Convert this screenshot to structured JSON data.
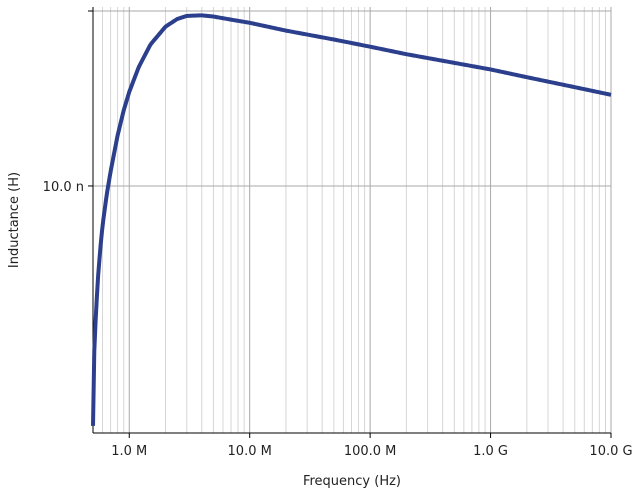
{
  "chart_data": {
    "type": "line",
    "title": "",
    "xlabel": "Frequency (Hz)",
    "ylabel": "Inductance (H)",
    "x_scale": "log",
    "y_scale": "log",
    "xlim": [
      500000,
      10000000000
    ],
    "ylim": [
      2.3e-09,
      2.9e-08
    ],
    "grid": true,
    "legend": "none",
    "x_ticks": [
      {
        "value": 1000000,
        "label": "1.0 M"
      },
      {
        "value": 10000000,
        "label": "10.0 M"
      },
      {
        "value": 100000000,
        "label": "100.0 M"
      },
      {
        "value": 1000000000,
        "label": "1.0 G"
      },
      {
        "value": 10000000000,
        "label": "10.0 G"
      }
    ],
    "y_ticks": [
      {
        "value": 1e-08,
        "label": "10.0 n"
      }
    ],
    "series": [
      {
        "color": "#2b3f8c",
        "x": [
          500000,
          505000,
          510000,
          520000,
          535000,
          550000,
          575000,
          600000,
          650000,
          700000,
          800000,
          900000,
          1000000,
          1200000,
          1500000,
          2000000,
          2500000,
          3000000,
          4000000,
          5000000,
          7000000,
          10000000,
          20000000,
          50000000,
          100000000,
          200000000,
          500000000,
          1000000000,
          2000000000,
          5000000000,
          10000000000
        ],
        "values": [
          2.4e-09,
          3.1e-09,
          3.6e-09,
          4.2e-09,
          5e-09,
          5.8e-09,
          6.9e-09,
          7.9e-09,
          9.5e-09,
          1.09e-08,
          1.35e-08,
          1.57e-08,
          1.75e-08,
          2.03e-08,
          2.32e-08,
          2.58e-08,
          2.7e-08,
          2.75e-08,
          2.76e-08,
          2.74e-08,
          2.69e-08,
          2.64e-08,
          2.52e-08,
          2.39e-08,
          2.29e-08,
          2.19e-08,
          2.08e-08,
          2e-08,
          1.91e-08,
          1.8e-08,
          1.72e-08
        ]
      }
    ]
  }
}
